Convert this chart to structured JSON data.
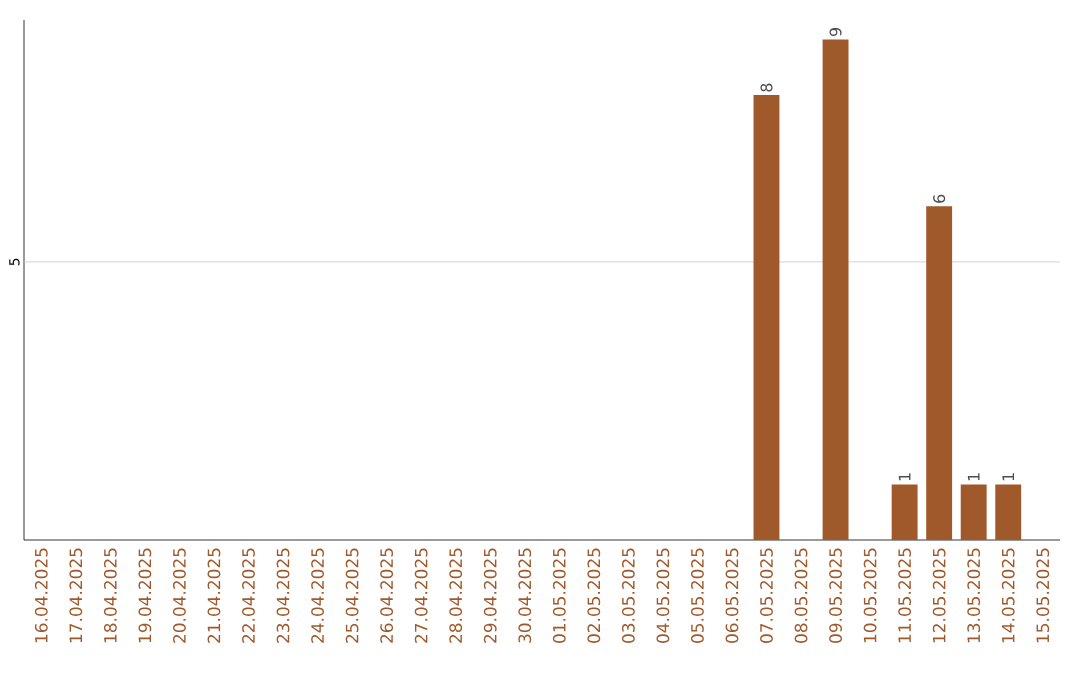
{
  "chart_data": {
    "type": "bar",
    "ylim": [
      0,
      9.35
    ],
    "categories": [
      "16.04.2025",
      "17.04.2025",
      "18.04.2025",
      "19.04.2025",
      "20.04.2025",
      "21.04.2025",
      "22.04.2025",
      "23.04.2025",
      "24.04.2025",
      "25.04.2025",
      "26.04.2025",
      "27.04.2025",
      "28.04.2025",
      "29.04.2025",
      "30.04.2025",
      "01.05.2025",
      "02.05.2025",
      "03.05.2025",
      "04.05.2025",
      "05.05.2025",
      "06.05.2025",
      "07.05.2025",
      "08.05.2025",
      "09.05.2025",
      "10.05.2025",
      "11.05.2025",
      "12.05.2025",
      "13.05.2025",
      "14.05.2025",
      "15.05.2025"
    ],
    "values": [
      null,
      null,
      null,
      null,
      null,
      null,
      null,
      null,
      null,
      null,
      null,
      null,
      null,
      null,
      null,
      null,
      null,
      null,
      null,
      null,
      null,
      8,
      null,
      9,
      null,
      1,
      6,
      1,
      1,
      null
    ],
    "value_labels": [
      null,
      null,
      null,
      null,
      null,
      null,
      null,
      null,
      null,
      null,
      null,
      null,
      null,
      null,
      null,
      null,
      null,
      null,
      null,
      null,
      null,
      "8",
      null,
      "9",
      null,
      "1",
      "6",
      "1",
      "1",
      null
    ],
    "color": "#a0592b",
    "ref_lines": [
      {
        "axis": "y",
        "value": 5,
        "label": "5",
        "color": "#c8c8c8"
      }
    ]
  }
}
